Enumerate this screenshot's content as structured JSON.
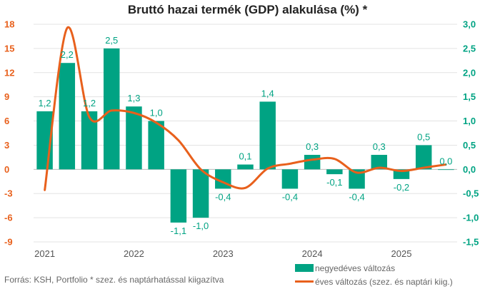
{
  "chart_data": {
    "type": "bar",
    "title": "Bruttó hazai termék (GDP) alakulása (%) *",
    "x_tick_labels": [
      "2021",
      "2022",
      "2023",
      "2024",
      "2025"
    ],
    "quarters": [
      "2021 Q1",
      "2021 Q2",
      "2021 Q3",
      "2021 Q4",
      "2022 Q1",
      "2022 Q2",
      "2022 Q3",
      "2022 Q4",
      "2023 Q1",
      "2023 Q2",
      "2023 Q3",
      "2023 Q4",
      "2024 Q1",
      "2024 Q2",
      "2024 Q3",
      "2024 Q4",
      "2025 Q1",
      "2025 Q2",
      "2025 Q3"
    ],
    "y_left": {
      "min": -9,
      "max": 18,
      "ticks": [
        "-9",
        "-6",
        "-3",
        "0",
        "3",
        "6",
        "9",
        "12",
        "15",
        "18"
      ]
    },
    "y_right": {
      "min": -1.5,
      "max": 3.0,
      "ticks": [
        "-1,5",
        "-1,0",
        "-0,5",
        "0,0",
        "0,5",
        "1,0",
        "1,5",
        "2,0",
        "2,5",
        "3,0"
      ]
    },
    "series": [
      {
        "name": "negyedéves változás",
        "axis": "right",
        "kind": "bar",
        "color": "#00a383",
        "values": [
          1.2,
          2.2,
          1.2,
          2.5,
          1.3,
          1.0,
          -1.1,
          -1.0,
          -0.4,
          0.1,
          1.4,
          -0.4,
          0.3,
          -0.1,
          -0.4,
          0.3,
          -0.2,
          0.5,
          0.0
        ],
        "labels": [
          "1,2",
          "2,2",
          "1,2",
          "2,5",
          "1,3",
          "1,0",
          "-1,1",
          "-1,0",
          "-0,4",
          "0,1",
          "1,4",
          "-0,4",
          "0,3",
          "-0,1",
          "-0,4",
          "0,3",
          "-0,2",
          "0,5",
          "0,0"
        ]
      },
      {
        "name": "éves változás (szez. és naptári kiig.)",
        "axis": "left",
        "kind": "line",
        "color": "#e8601c",
        "values": [
          -2.6,
          17.5,
          6.5,
          7.3,
          7.0,
          5.8,
          3.6,
          0.0,
          -1.6,
          -2.3,
          0.1,
          0.7,
          1.2,
          1.3,
          -0.4,
          0.2,
          -0.2,
          0.2,
          0.6
        ]
      }
    ],
    "legend_position": "bottom-right",
    "grid": "horizontal"
  },
  "footer": {
    "source": "Forrás: KSH, Portfolio   * szez. és naptárhatással kiigazítva"
  },
  "legend": {
    "bar_label": "negyedéves változás",
    "line_label": "éves változás (szez. és naptári kiig.)"
  }
}
